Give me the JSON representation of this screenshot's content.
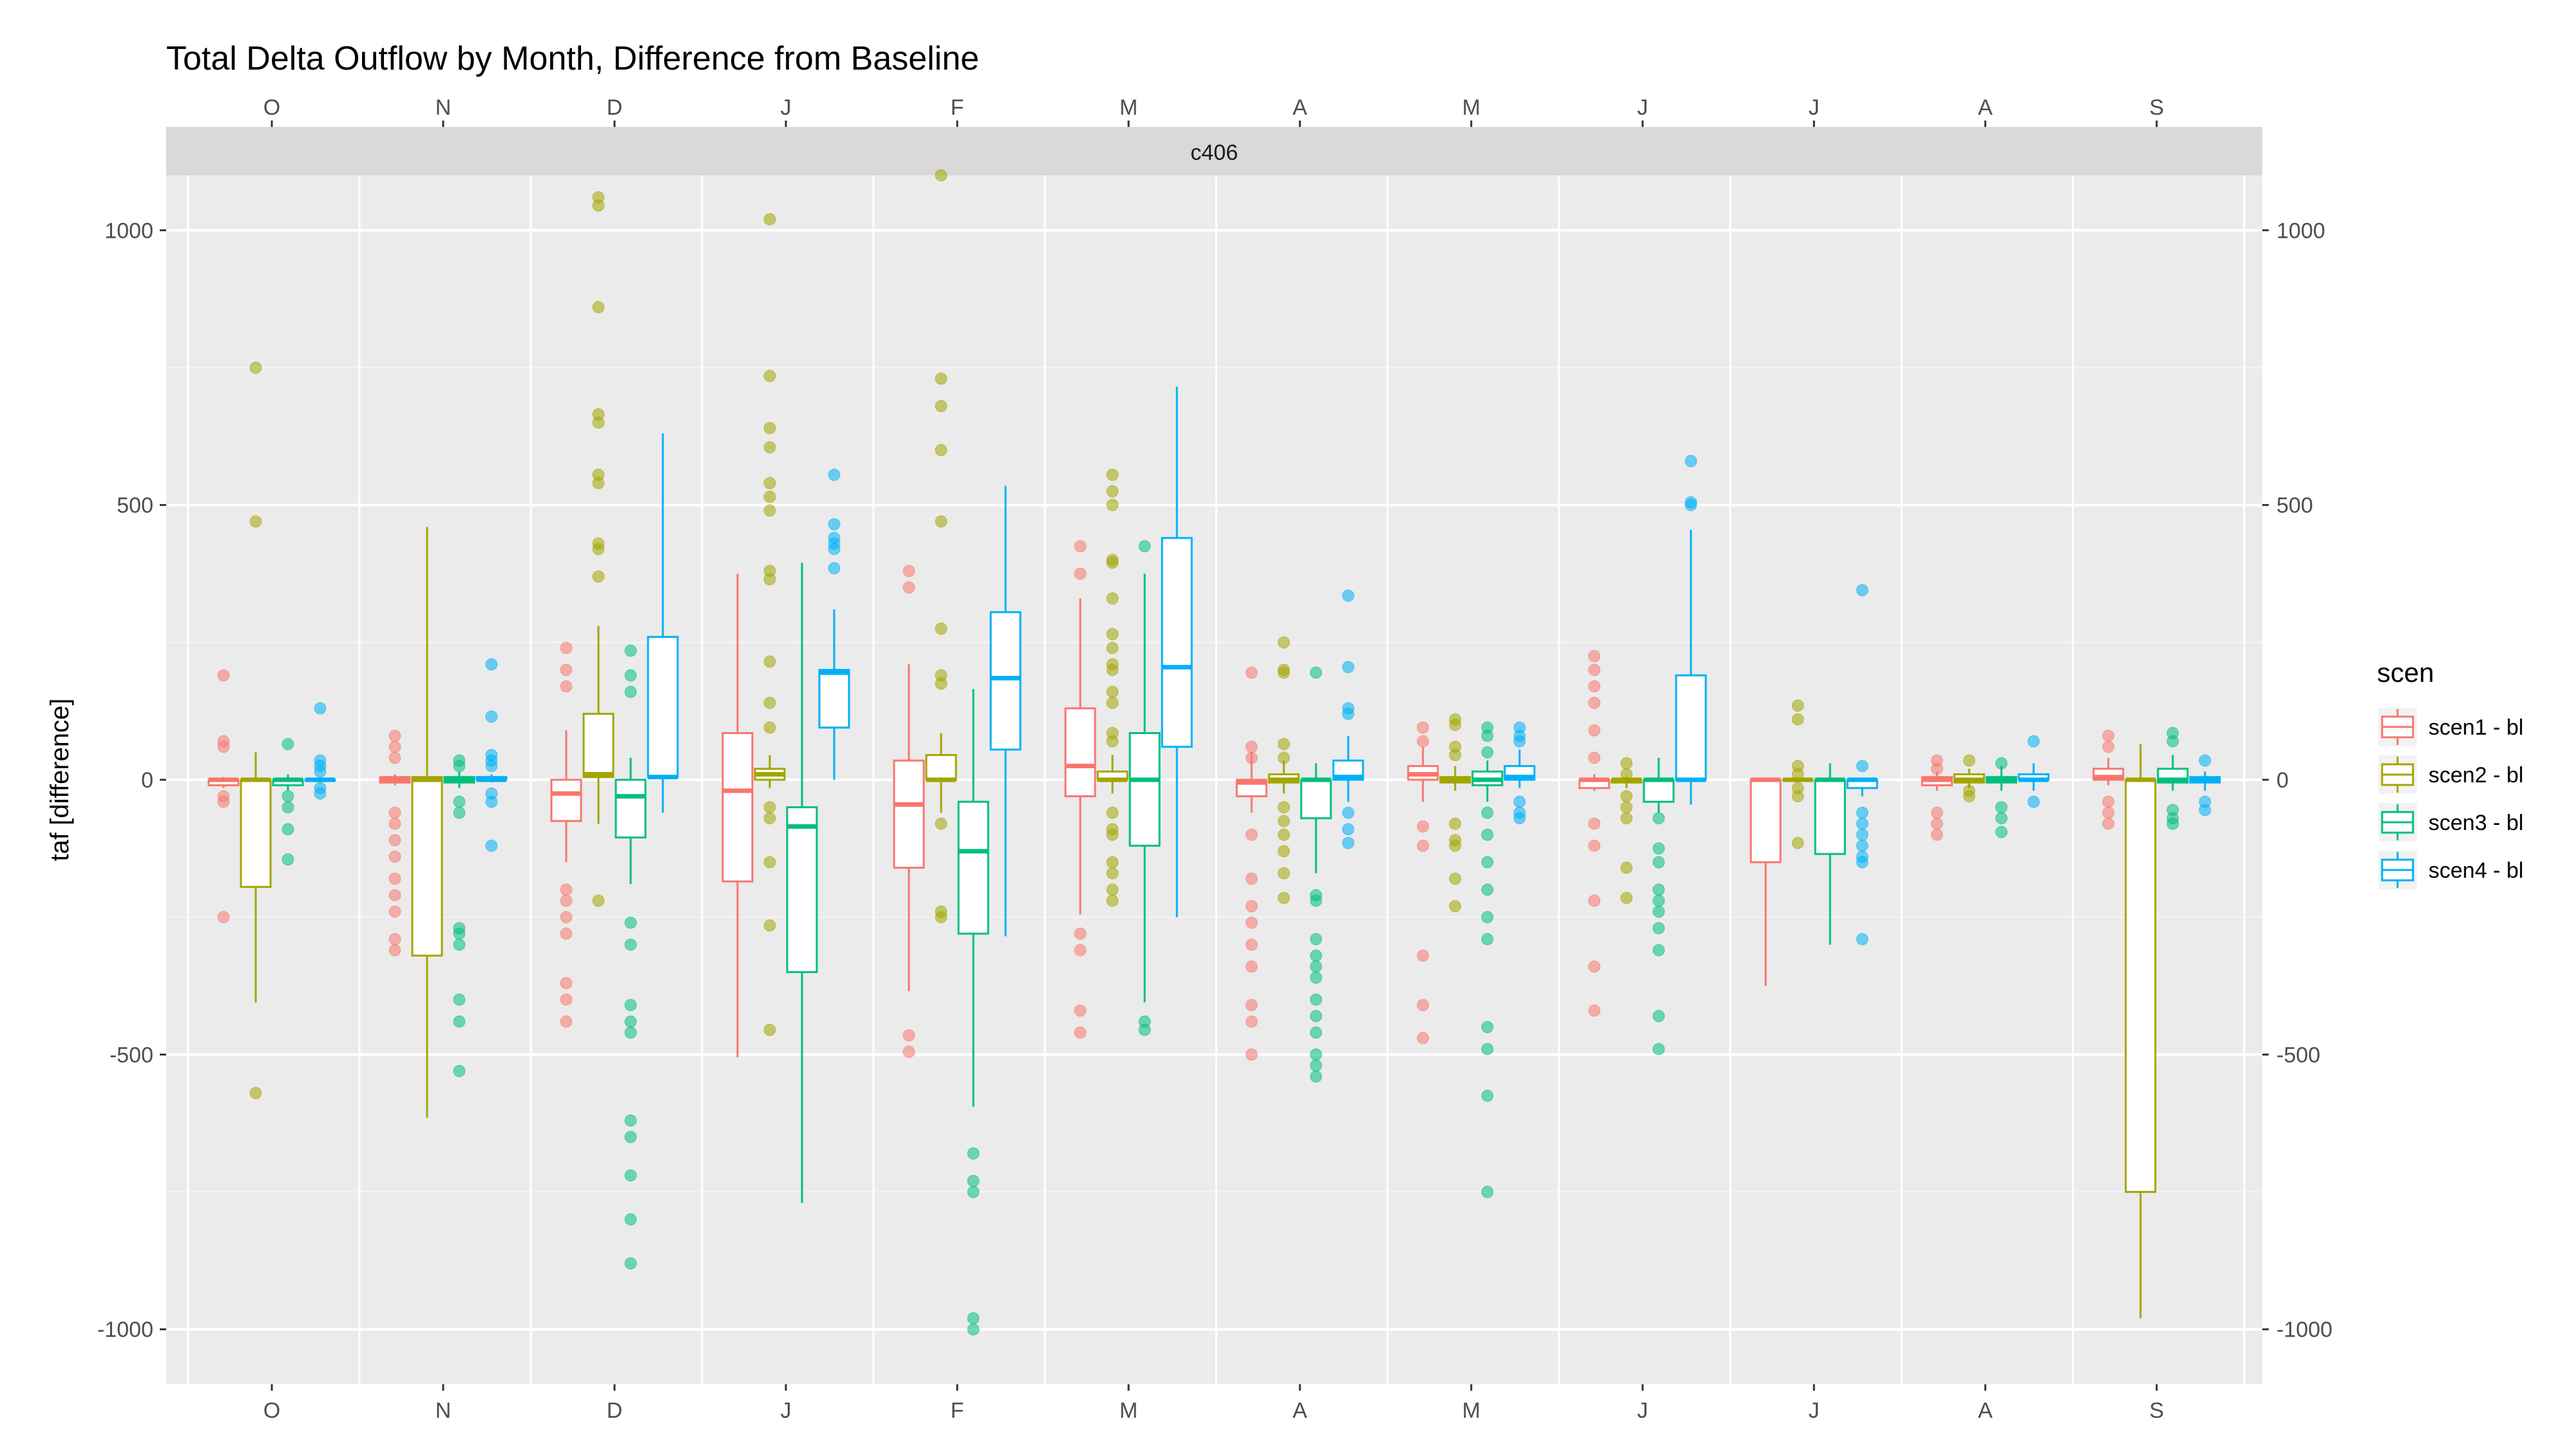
{
  "chart_data": {
    "type": "boxplot",
    "title": "Total Delta Outflow by Month, Difference from Baseline",
    "facet": "c406",
    "xlabel": "",
    "ylabel": "taf [difference]",
    "ylim": [
      -1100,
      1100
    ],
    "yticks": [
      -1000,
      -500,
      0,
      500,
      1000
    ],
    "categories": [
      "O",
      "N",
      "D",
      "J",
      "F",
      "M",
      "A",
      "M",
      "J",
      "J",
      "A",
      "S"
    ],
    "grid": true,
    "legend": {
      "title": "scen",
      "position": "right"
    },
    "series": [
      {
        "name": "scen1 - bl",
        "color": "#F8766D",
        "boxes": [
          {
            "q1": -10,
            "med": 0,
            "q3": 0,
            "lo": -15,
            "hi": 5,
            "out": [
              190,
              70,
              60,
              -30,
              -40,
              -250
            ]
          },
          {
            "q1": -5,
            "med": 0,
            "q3": 5,
            "lo": -10,
            "hi": 10,
            "out": [
              80,
              60,
              40,
              -60,
              -80,
              -110,
              -140,
              -180,
              -210,
              -240,
              -290,
              -310
            ]
          },
          {
            "q1": -75,
            "med": -25,
            "q3": 0,
            "lo": -150,
            "hi": 90,
            "out": [
              240,
              200,
              170,
              -200,
              -220,
              -250,
              -280,
              -370,
              -400,
              -440
            ]
          },
          {
            "q1": -185,
            "med": -20,
            "q3": 85,
            "lo": -505,
            "hi": 375,
            "out": []
          },
          {
            "q1": -160,
            "med": -45,
            "q3": 35,
            "lo": -385,
            "hi": 210,
            "out": [
              380,
              350,
              -465,
              -495
            ]
          },
          {
            "q1": -30,
            "med": 25,
            "q3": 130,
            "lo": -245,
            "hi": 330,
            "out": [
              425,
              375,
              -280,
              -310,
              -420,
              -460
            ]
          },
          {
            "q1": -30,
            "med": -5,
            "q3": 0,
            "lo": -60,
            "hi": 50,
            "out": [
              195,
              60,
              40,
              -100,
              -180,
              -230,
              -260,
              -300,
              -340,
              -410,
              -440,
              -500
            ]
          },
          {
            "q1": 0,
            "med": 10,
            "q3": 25,
            "lo": -40,
            "hi": 60,
            "out": [
              95,
              70,
              -85,
              -120,
              -320,
              -410,
              -470
            ]
          },
          {
            "q1": -15,
            "med": 0,
            "q3": 0,
            "lo": -20,
            "hi": 10,
            "out": [
              225,
              200,
              170,
              140,
              90,
              40,
              -80,
              -120,
              -220,
              -340,
              -420
            ]
          },
          {
            "q1": -150,
            "med": 0,
            "q3": 0,
            "lo": -375,
            "hi": 0,
            "out": []
          },
          {
            "q1": -10,
            "med": 0,
            "q3": 5,
            "lo": -20,
            "hi": 15,
            "out": [
              35,
              20,
              -60,
              -80,
              -100
            ]
          },
          {
            "q1": 0,
            "med": 5,
            "q3": 20,
            "lo": -10,
            "hi": 40,
            "out": [
              80,
              60,
              -40,
              -60,
              -80
            ]
          }
        ]
      },
      {
        "name": "scen2 - bl",
        "color": "#A3A500",
        "boxes": [
          {
            "q1": -195,
            "med": 0,
            "q3": 0,
            "lo": -405,
            "hi": 50,
            "out": [
              750,
              470,
              -570
            ]
          },
          {
            "q1": -320,
            "med": 0,
            "q3": 5,
            "lo": -615,
            "hi": 460,
            "out": []
          },
          {
            "q1": 5,
            "med": 10,
            "q3": 120,
            "lo": -80,
            "hi": 280,
            "out": [
              1060,
              1045,
              860,
              665,
              650,
              555,
              540,
              430,
              420,
              370,
              -220
            ]
          },
          {
            "q1": 0,
            "med": 10,
            "q3": 20,
            "lo": -15,
            "hi": 45,
            "out": [
              1020,
              735,
              640,
              605,
              540,
              515,
              490,
              380,
              365,
              215,
              140,
              95,
              -50,
              -70,
              -150,
              -265,
              -455
            ]
          },
          {
            "q1": 0,
            "med": 0,
            "q3": 45,
            "lo": -60,
            "hi": 85,
            "out": [
              1100,
              730,
              680,
              600,
              470,
              275,
              190,
              175,
              -80,
              -240,
              -250
            ]
          },
          {
            "q1": 0,
            "med": 0,
            "q3": 15,
            "lo": -25,
            "hi": 45,
            "out": [
              555,
              525,
              500,
              400,
              395,
              330,
              265,
              240,
              210,
              200,
              160,
              140,
              85,
              70,
              -60,
              -90,
              -100,
              -150,
              -170,
              -200,
              -220
            ]
          },
          {
            "q1": -5,
            "med": 0,
            "q3": 10,
            "lo": -25,
            "hi": 35,
            "out": [
              250,
              200,
              195,
              65,
              40,
              -50,
              -75,
              -100,
              -130,
              -170,
              -215
            ]
          },
          {
            "q1": -5,
            "med": 0,
            "q3": 5,
            "lo": -20,
            "hi": 25,
            "out": [
              110,
              100,
              60,
              45,
              -80,
              -110,
              -120,
              -180,
              -230
            ]
          },
          {
            "q1": -5,
            "med": 0,
            "q3": 0,
            "lo": -15,
            "hi": 5,
            "out": [
              30,
              10,
              -30,
              -50,
              -70,
              -160,
              -215
            ]
          },
          {
            "q1": 0,
            "med": 0,
            "q3": 0,
            "lo": -5,
            "hi": 5,
            "out": [
              135,
              110,
              25,
              10,
              -15,
              -30,
              -115
            ]
          },
          {
            "q1": -5,
            "med": 0,
            "q3": 10,
            "lo": -15,
            "hi": 20,
            "out": [
              35,
              -20,
              -30
            ]
          },
          {
            "q1": -750,
            "med": 0,
            "q3": 0,
            "lo": -980,
            "hi": 65,
            "out": []
          }
        ]
      },
      {
        "name": "scen3 - bl",
        "color": "#00BF7D",
        "boxes": [
          {
            "q1": -10,
            "med": 0,
            "q3": 0,
            "lo": -20,
            "hi": 10,
            "out": [
              65,
              -30,
              -50,
              -90,
              -145
            ]
          },
          {
            "q1": -5,
            "med": 0,
            "q3": 5,
            "lo": -15,
            "hi": 15,
            "out": [
              35,
              25,
              -40,
              -60,
              -270,
              -280,
              -300,
              -400,
              -440,
              -530
            ]
          },
          {
            "q1": -105,
            "med": -30,
            "q3": 0,
            "lo": -190,
            "hi": 40,
            "out": [
              235,
              190,
              160,
              -260,
              -300,
              -410,
              -440,
              -460,
              -620,
              -650,
              -720,
              -800,
              -880
            ]
          },
          {
            "q1": -350,
            "med": -85,
            "q3": -50,
            "lo": -770,
            "hi": 395,
            "out": []
          },
          {
            "q1": -280,
            "med": -130,
            "q3": -40,
            "lo": -595,
            "hi": 165,
            "out": [
              -680,
              -730,
              -750,
              -980,
              -1000
            ]
          },
          {
            "q1": -120,
            "med": 0,
            "q3": 85,
            "lo": -405,
            "hi": 375,
            "out": [
              425,
              -440,
              -455
            ]
          },
          {
            "q1": -70,
            "med": 0,
            "q3": 0,
            "lo": -170,
            "hi": 30,
            "out": [
              195,
              -210,
              -220,
              -290,
              -320,
              -340,
              -360,
              -400,
              -430,
              -460,
              -500,
              -520,
              -540
            ]
          },
          {
            "q1": -10,
            "med": 0,
            "q3": 15,
            "lo": -40,
            "hi": 35,
            "out": [
              95,
              80,
              50,
              -60,
              -100,
              -150,
              -200,
              -250,
              -290,
              -450,
              -490,
              -575,
              -750
            ]
          },
          {
            "q1": -40,
            "med": 0,
            "q3": 0,
            "lo": -60,
            "hi": 40,
            "out": [
              -70,
              -125,
              -150,
              -200,
              -220,
              -240,
              -270,
              -310,
              -430,
              -490
            ]
          },
          {
            "q1": -135,
            "med": 0,
            "q3": 0,
            "lo": -300,
            "hi": 30,
            "out": []
          },
          {
            "q1": -5,
            "med": 0,
            "q3": 5,
            "lo": -20,
            "hi": 25,
            "out": [
              30,
              -50,
              -70,
              -95
            ]
          },
          {
            "q1": -5,
            "med": 0,
            "q3": 20,
            "lo": -20,
            "hi": 45,
            "out": [
              85,
              70,
              -55,
              -70,
              -80
            ]
          }
        ]
      },
      {
        "name": "scen4 - bl",
        "color": "#00B0F6",
        "boxes": [
          {
            "q1": 0,
            "med": 0,
            "q3": 0,
            "lo": -5,
            "hi": 5,
            "out": [
              130,
              35,
              25,
              15,
              -15,
              -25
            ]
          },
          {
            "q1": 0,
            "med": 0,
            "q3": 5,
            "lo": -5,
            "hi": 10,
            "out": [
              210,
              115,
              45,
              35,
              25,
              -25,
              -40,
              -120
            ]
          },
          {
            "q1": 5,
            "med": 5,
            "q3": 260,
            "lo": -60,
            "hi": 630,
            "out": []
          },
          {
            "q1": 95,
            "med": 195,
            "q3": 200,
            "lo": 0,
            "hi": 310,
            "out": [
              555,
              465,
              440,
              430,
              420,
              385
            ]
          },
          {
            "q1": 55,
            "med": 185,
            "q3": 305,
            "lo": -285,
            "hi": 535,
            "out": []
          },
          {
            "q1": 60,
            "med": 205,
            "q3": 440,
            "lo": -250,
            "hi": 715,
            "out": []
          },
          {
            "q1": 0,
            "med": 5,
            "q3": 35,
            "lo": -40,
            "hi": 80,
            "out": [
              335,
              205,
              130,
              120,
              -60,
              -90,
              -115
            ]
          },
          {
            "q1": 0,
            "med": 5,
            "q3": 25,
            "lo": -15,
            "hi": 55,
            "out": [
              95,
              80,
              70,
              -40,
              -60,
              -70
            ]
          },
          {
            "q1": 0,
            "med": 0,
            "q3": 190,
            "lo": -45,
            "hi": 455,
            "out": [
              580,
              505,
              500
            ]
          },
          {
            "q1": -15,
            "med": 0,
            "q3": 0,
            "lo": -30,
            "hi": 0,
            "out": [
              345,
              25,
              -60,
              -80,
              -100,
              -120,
              -140,
              -150,
              -290
            ]
          },
          {
            "q1": 0,
            "med": 0,
            "q3": 10,
            "lo": -20,
            "hi": 30,
            "out": [
              70,
              -40
            ]
          },
          {
            "q1": -5,
            "med": 0,
            "q3": 5,
            "lo": -20,
            "hi": 15,
            "out": [
              35,
              -40,
              -55
            ]
          }
        ]
      }
    ]
  }
}
